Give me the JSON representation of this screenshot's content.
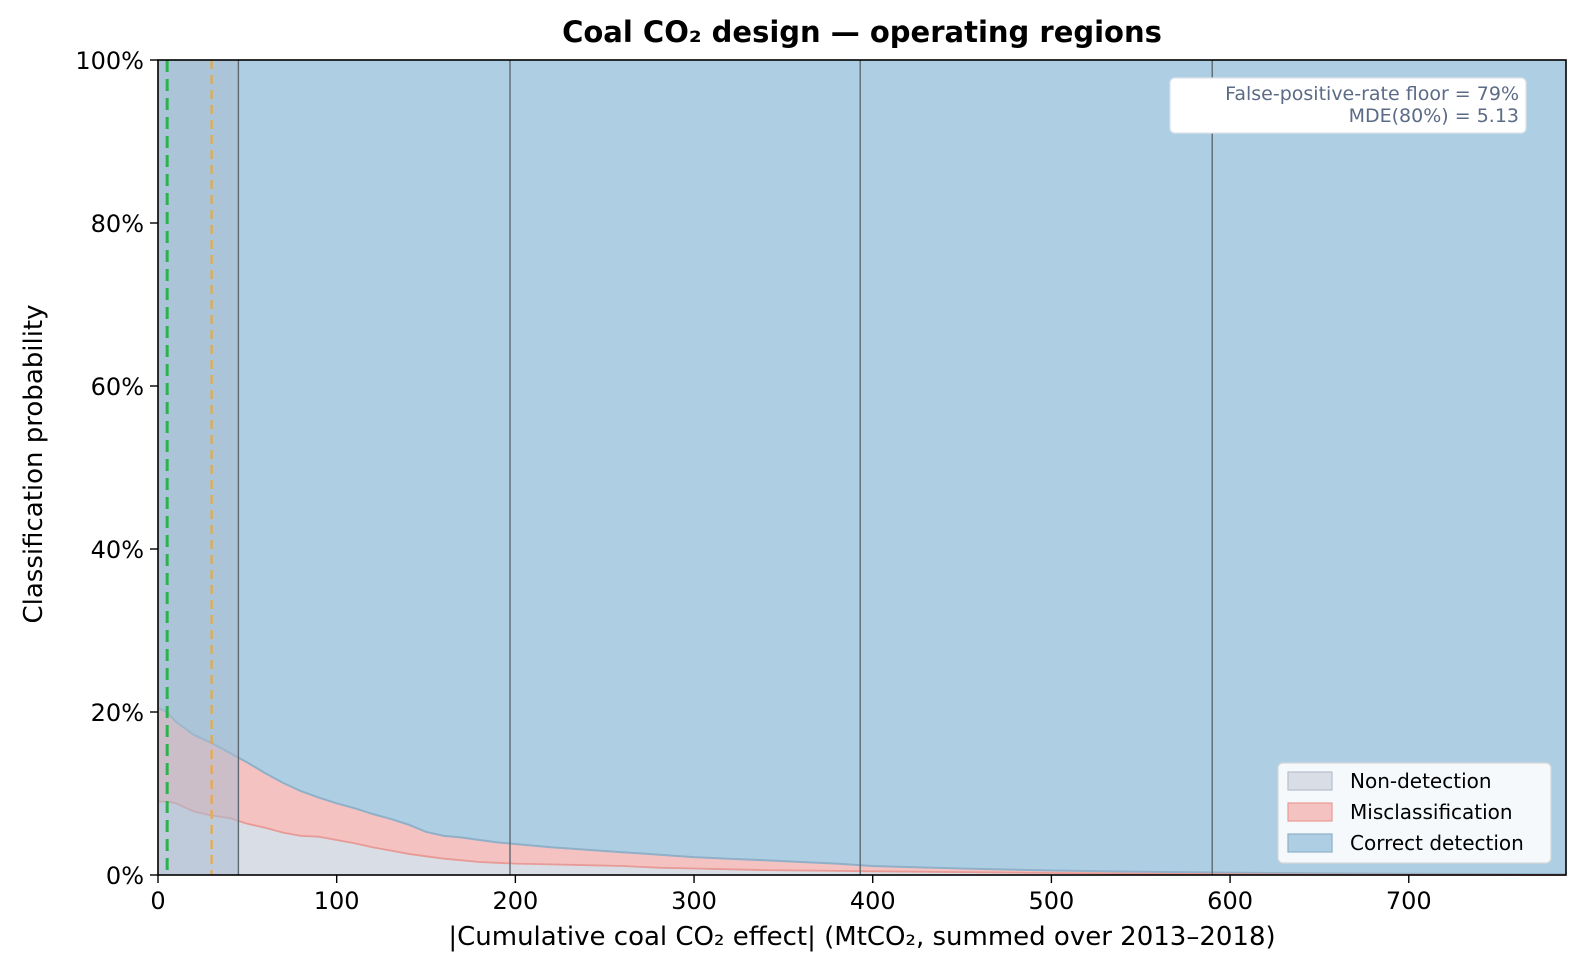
{
  "chart_data": {
    "type": "area",
    "title": "Coal CO₂ design — operating regions",
    "xlabel": "|Cumulative coal CO₂ effect| (MtCO₂, summed over 2013–2018)",
    "ylabel": "Classification probability",
    "xlim": [
      0,
      788
    ],
    "ylim": [
      0,
      100
    ],
    "x_ticks": [
      0,
      100,
      200,
      300,
      400,
      500,
      600,
      700
    ],
    "x_tick_labels": [
      "0",
      "100",
      "200",
      "300",
      "400",
      "500",
      "600",
      "700"
    ],
    "y_ticks": [
      0,
      20,
      40,
      60,
      80,
      100
    ],
    "y_tick_labels": [
      "0%",
      "20%",
      "40%",
      "60%",
      "80%",
      "100%"
    ],
    "grid": false,
    "legend_position": "bottom-right",
    "series": [
      {
        "name": "Non-detection",
        "color": "#d9dee6",
        "edge_color": "#b8bfcc",
        "x": [
          0,
          5,
          10,
          20,
          30,
          40,
          50,
          60,
          70,
          80,
          90,
          100,
          110,
          120,
          130,
          140,
          150,
          160,
          170,
          180,
          190,
          200,
          220,
          240,
          260,
          280,
          300,
          320,
          340,
          360,
          380,
          400,
          450,
          500,
          550,
          600,
          650,
          700,
          788
        ],
        "values": [
          9.0,
          9.0,
          8.8,
          7.8,
          7.3,
          7.0,
          6.3,
          5.8,
          5.2,
          4.8,
          4.7,
          4.3,
          3.9,
          3.4,
          3.0,
          2.6,
          2.3,
          2.0,
          1.8,
          1.6,
          1.5,
          1.4,
          1.3,
          1.2,
          1.1,
          0.9,
          0.8,
          0.7,
          0.6,
          0.55,
          0.5,
          0.45,
          0.35,
          0.25,
          0.15,
          0.1,
          0.05,
          0.03,
          0.0
        ]
      },
      {
        "name": "Misclassification",
        "color": "#f4c2c0",
        "edge_color": "#e89a96",
        "x": [
          0,
          5,
          10,
          20,
          30,
          40,
          50,
          60,
          70,
          80,
          90,
          100,
          110,
          120,
          130,
          140,
          150,
          160,
          170,
          180,
          190,
          200,
          220,
          240,
          260,
          280,
          300,
          320,
          340,
          360,
          380,
          400,
          450,
          500,
          550,
          600,
          650,
          700,
          788
        ],
        "values": [
          20.5,
          20.0,
          18.8,
          17.2,
          16.2,
          15.0,
          13.8,
          12.5,
          11.3,
          10.3,
          9.5,
          8.8,
          8.2,
          7.5,
          6.9,
          6.2,
          5.3,
          4.8,
          4.6,
          4.3,
          4.0,
          3.8,
          3.4,
          3.1,
          2.8,
          2.5,
          2.2,
          2.0,
          1.8,
          1.6,
          1.4,
          1.1,
          0.8,
          0.55,
          0.4,
          0.3,
          0.2,
          0.15,
          0.1
        ]
      },
      {
        "name": "Correct detection",
        "color": "#aecfe3",
        "edge_color": "#8fb0c8",
        "top": 100
      }
    ],
    "vertical_lines": [
      {
        "x": 5.13,
        "color": "#2bb24c",
        "style": "dashed",
        "label": "MDE(80%)"
      },
      {
        "x": 30,
        "color": "#f5a623",
        "style": "dashed"
      },
      {
        "x": 45,
        "color": "#5f6870",
        "style": "solid"
      },
      {
        "x": 197,
        "color": "#5f6870",
        "style": "solid"
      },
      {
        "x": 393,
        "color": "#5f6870",
        "style": "solid"
      },
      {
        "x": 590,
        "color": "#5f6870",
        "style": "solid"
      }
    ],
    "shaded_band": {
      "x_from": 0,
      "x_to": 45,
      "color": "#a9bcd0"
    },
    "annotation": [
      "False-positive-rate floor = 79%",
      "MDE(80%) = 5.13"
    ],
    "legend": [
      "Non-detection",
      "Misclassification",
      "Correct detection"
    ]
  }
}
